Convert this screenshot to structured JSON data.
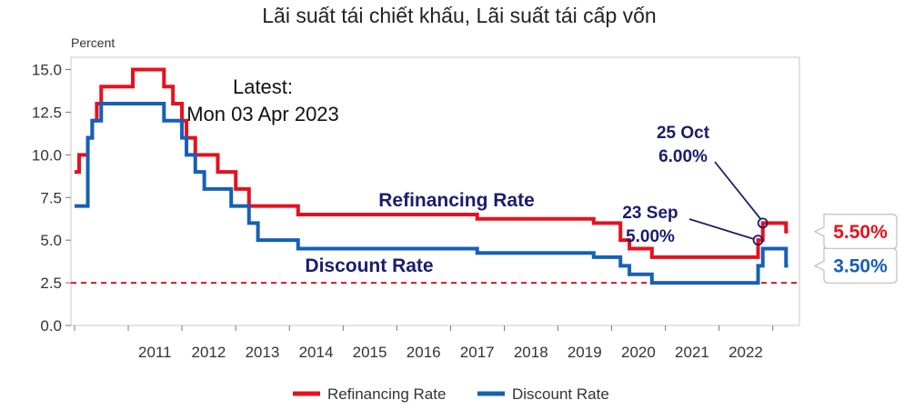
{
  "chart_data": {
    "type": "line",
    "title": "Lãi suất tái chiết khấu, Lãi suất tái cấp vốn",
    "ylabel": "Percent",
    "ylim": [
      0,
      15
    ],
    "yticks": [
      "0.0",
      "2.5",
      "5.0",
      "7.5",
      "10.0",
      "12.5",
      "15.0"
    ],
    "ytick_values": [
      0,
      2.5,
      5,
      7.5,
      10,
      12.5,
      15
    ],
    "xlim": [
      "2010-01-01",
      "2023-07-01"
    ],
    "xticks": [
      "2011",
      "2012",
      "2013",
      "2014",
      "2015",
      "2016",
      "2017",
      "2018",
      "2019",
      "2020",
      "2021",
      "2022"
    ],
    "xtick_dates": [
      "2011-07-01",
      "2012-07-01",
      "2013-07-01",
      "2014-07-01",
      "2015-07-01",
      "2016-07-01",
      "2017-07-01",
      "2018-07-01",
      "2019-07-01",
      "2020-07-01",
      "2021-07-01",
      "2022-07-01"
    ],
    "grid": false,
    "legend_position": "bottom",
    "colors": {
      "refinancing": "#e8101e",
      "discount": "#1560b8",
      "reference": "#e8101e",
      "annotation": "#1b1d6b"
    },
    "reference_line": {
      "y": 2.5,
      "style": "dashed"
    },
    "series": [
      {
        "name": "Refinancing Rate",
        "color": "#e8101e",
        "points": [
          [
            "2010-01-01",
            9
          ],
          [
            "2010-02-01",
            9
          ],
          [
            "2010-02-01",
            10
          ],
          [
            "2010-04-01",
            10
          ],
          [
            "2010-04-01",
            11
          ],
          [
            "2010-05-01",
            11
          ],
          [
            "2010-05-01",
            12
          ],
          [
            "2010-06-01",
            12
          ],
          [
            "2010-06-01",
            13
          ],
          [
            "2010-07-01",
            13
          ],
          [
            "2010-07-01",
            14
          ],
          [
            "2011-02-01",
            14
          ],
          [
            "2011-02-01",
            15
          ],
          [
            "2011-09-01",
            15
          ],
          [
            "2011-09-01",
            14
          ],
          [
            "2011-11-01",
            14
          ],
          [
            "2011-11-01",
            13
          ],
          [
            "2012-01-01",
            13
          ],
          [
            "2012-01-01",
            12
          ],
          [
            "2012-02-01",
            12
          ],
          [
            "2012-02-01",
            11
          ],
          [
            "2012-04-01",
            11
          ],
          [
            "2012-04-01",
            10
          ],
          [
            "2012-09-01",
            10
          ],
          [
            "2012-09-01",
            9
          ],
          [
            "2013-01-01",
            9
          ],
          [
            "2013-01-01",
            8
          ],
          [
            "2013-04-01",
            8
          ],
          [
            "2013-04-01",
            7
          ],
          [
            "2014-03-01",
            7
          ],
          [
            "2014-03-01",
            6.5
          ],
          [
            "2017-07-01",
            6.5
          ],
          [
            "2017-07-01",
            6.25
          ],
          [
            "2019-09-01",
            6.25
          ],
          [
            "2019-09-01",
            6
          ],
          [
            "2020-03-01",
            6
          ],
          [
            "2020-03-01",
            5
          ],
          [
            "2020-05-01",
            5
          ],
          [
            "2020-05-01",
            4.5
          ],
          [
            "2020-10-01",
            4.5
          ],
          [
            "2020-10-01",
            4
          ],
          [
            "2022-09-23",
            4
          ],
          [
            "2022-09-23",
            5
          ],
          [
            "2022-10-25",
            5
          ],
          [
            "2022-10-25",
            6
          ],
          [
            "2023-04-01",
            6
          ],
          [
            "2023-04-01",
            5.5
          ],
          [
            "2023-04-15",
            5.5
          ]
        ]
      },
      {
        "name": "Discount Rate",
        "color": "#1560b8",
        "points": [
          [
            "2010-01-01",
            7
          ],
          [
            "2010-04-01",
            7
          ],
          [
            "2010-04-01",
            11
          ],
          [
            "2010-05-01",
            11
          ],
          [
            "2010-05-01",
            12
          ],
          [
            "2010-07-01",
            12
          ],
          [
            "2010-07-01",
            13
          ],
          [
            "2011-09-01",
            13
          ],
          [
            "2011-09-01",
            12
          ],
          [
            "2012-01-01",
            12
          ],
          [
            "2012-01-01",
            11
          ],
          [
            "2012-02-01",
            11
          ],
          [
            "2012-02-01",
            10
          ],
          [
            "2012-04-01",
            10
          ],
          [
            "2012-04-01",
            9
          ],
          [
            "2012-06-01",
            9
          ],
          [
            "2012-06-01",
            8
          ],
          [
            "2012-12-01",
            8
          ],
          [
            "2012-12-01",
            7
          ],
          [
            "2013-04-01",
            7
          ],
          [
            "2013-04-01",
            6
          ],
          [
            "2013-06-01",
            6
          ],
          [
            "2013-06-01",
            5
          ],
          [
            "2014-03-01",
            5
          ],
          [
            "2014-03-01",
            4.5
          ],
          [
            "2017-07-01",
            4.5
          ],
          [
            "2017-07-01",
            4.25
          ],
          [
            "2019-09-01",
            4.25
          ],
          [
            "2019-09-01",
            4
          ],
          [
            "2020-03-01",
            4
          ],
          [
            "2020-03-01",
            3.5
          ],
          [
            "2020-05-01",
            3.5
          ],
          [
            "2020-05-01",
            3
          ],
          [
            "2020-10-01",
            3
          ],
          [
            "2020-10-01",
            2.5
          ],
          [
            "2022-09-23",
            2.5
          ],
          [
            "2022-09-23",
            3.5
          ],
          [
            "2022-10-25",
            3.5
          ],
          [
            "2022-10-25",
            4.5
          ],
          [
            "2023-04-01",
            4.5
          ],
          [
            "2023-04-01",
            3.5
          ],
          [
            "2023-04-15",
            3.5
          ]
        ]
      }
    ],
    "annotations": {
      "latest_line1": "Latest:",
      "latest_line2": "Mon 03 Apr 2023",
      "refinancing_label": "Refinancing Rate",
      "discount_label": "Discount Rate",
      "sep_date": "23 Sep",
      "sep_value": "5.00%",
      "sep_point": {
        "x": "2022-09-23",
        "y": 5
      },
      "oct_date": "25 Oct",
      "oct_value": "6.00%",
      "oct_point": {
        "x": "2022-10-25",
        "y": 6
      },
      "last_refinancing": "5.50%",
      "last_refinancing_value": 5.5,
      "last_discount": "3.50%",
      "last_discount_value": 3.5
    },
    "legend": [
      "Refinancing Rate",
      "Discount Rate"
    ]
  }
}
